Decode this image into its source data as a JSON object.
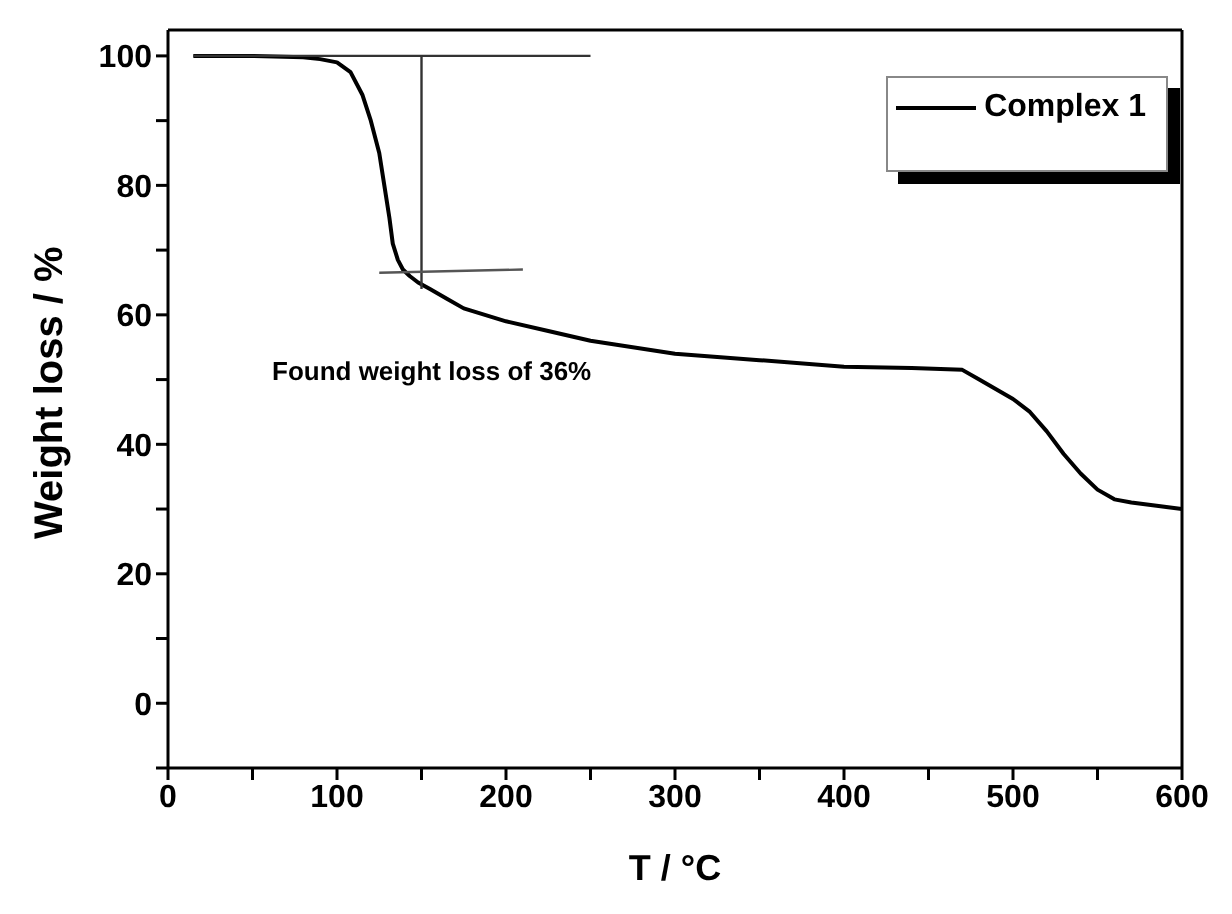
{
  "chart_data": {
    "type": "line",
    "xlabel": "T / °C",
    "ylabel": "Weight  loss / %",
    "xlim": [
      0,
      600
    ],
    "ylim": [
      -10,
      104
    ],
    "xticks": [
      0,
      {
        "value": 50,
        "label": null
      },
      100,
      {
        "value": 150,
        "label": null
      },
      200,
      {
        "value": 250,
        "label": null
      },
      300,
      {
        "value": 350,
        "label": null
      },
      400,
      {
        "value": 450,
        "label": null
      },
      500,
      {
        "value": 550,
        "label": null
      },
      600
    ],
    "yticks": [
      {
        "value": -10,
        "label": null
      },
      0,
      {
        "value": 10,
        "label": null
      },
      20,
      {
        "value": 30,
        "label": null
      },
      40,
      {
        "value": 50,
        "label": null
      },
      60,
      {
        "value": 70,
        "label": null
      },
      80,
      {
        "value": 90,
        "label": null
      },
      100
    ],
    "legend": "top right",
    "marker": "none",
    "line_style": "solid",
    "annotations": [
      "Found weight loss of 36%"
    ],
    "series": [
      {
        "name": "Complex 1",
        "color": "#000000",
        "x": [
          15,
          50,
          80,
          90,
          100,
          108,
          115,
          120,
          125,
          128,
          131,
          133,
          136,
          139,
          143,
          148,
          155,
          165,
          175,
          200,
          225,
          250,
          300,
          350,
          400,
          440,
          470,
          480,
          490,
          500,
          510,
          520,
          530,
          540,
          550,
          560,
          570,
          585,
          600
        ],
        "values": [
          100,
          100,
          99.8,
          99.5,
          99,
          97.5,
          94,
          90,
          85,
          80,
          75,
          71,
          68.5,
          67,
          66,
          65,
          64,
          62.5,
          61,
          59,
          57.5,
          56,
          54,
          53,
          52,
          51.8,
          51.5,
          50,
          48.5,
          47,
          45,
          42,
          38.5,
          35.5,
          33,
          31.5,
          31,
          30.5,
          30
        ]
      },
      {
        "color": "#333333",
        "x": [
          15,
          250
        ],
        "values": [
          100,
          100
        ]
      },
      {
        "color": "#333333",
        "x": [
          150,
          150
        ],
        "values": [
          100,
          64
        ]
      },
      {
        "color": "#555555",
        "x": [
          125,
          210
        ],
        "values": [
          66.5,
          67
        ]
      }
    ]
  }
}
